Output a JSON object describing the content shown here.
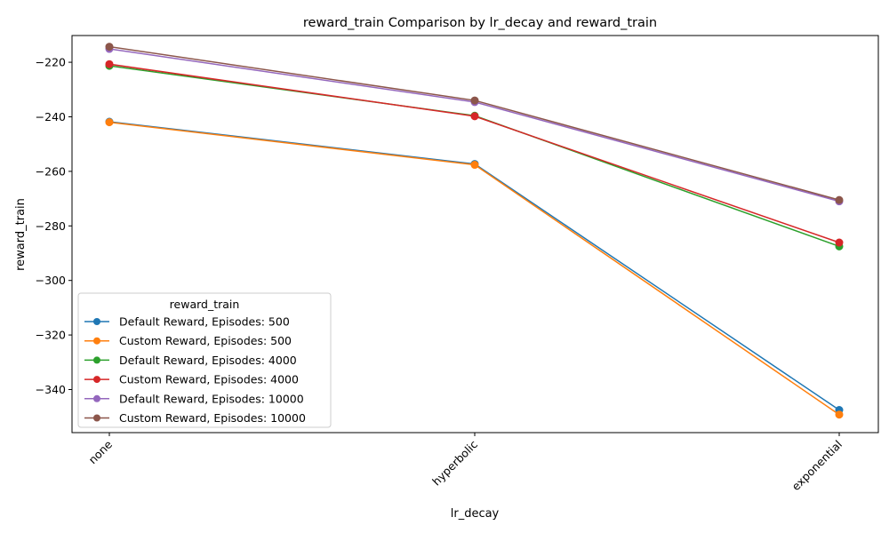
{
  "chart_data": {
    "type": "line",
    "title": "reward_train Comparison by lr_decay and reward_train",
    "xlabel": "lr_decay",
    "ylabel": "reward_train",
    "categories": [
      "none",
      "hyperbolic",
      "exponential"
    ],
    "ylim": [
      -355.8,
      -210.2
    ],
    "yticks": [
      -340,
      -320,
      -300,
      -280,
      -260,
      -240,
      -220
    ],
    "ytick_labels": [
      "−340",
      "−320",
      "−300",
      "−280",
      "−260",
      "−240",
      "−220"
    ],
    "grid": false,
    "legend": {
      "title": "reward_train",
      "placement": "lower-left"
    },
    "series": [
      {
        "name": "Default Reward, Episodes: 500",
        "color": "#1f77b4",
        "values": [
          -241.8,
          -257.3,
          -347.5
        ]
      },
      {
        "name": "Custom Reward, Episodes: 500",
        "color": "#ff7f0e",
        "values": [
          -242.0,
          -257.6,
          -349.2
        ]
      },
      {
        "name": "Default Reward, Episodes: 4000",
        "color": "#2ca02c",
        "values": [
          -221.3,
          -239.6,
          -287.5
        ]
      },
      {
        "name": "Custom Reward, Episodes: 4000",
        "color": "#d62728",
        "values": [
          -220.7,
          -239.8,
          -286.1
        ]
      },
      {
        "name": "Default Reward, Episodes: 10000",
        "color": "#9467bd",
        "values": [
          -215.1,
          -234.6,
          -271.0
        ]
      },
      {
        "name": "Custom Reward, Episodes: 10000",
        "color": "#8c564b",
        "values": [
          -214.3,
          -234.0,
          -270.5
        ]
      }
    ]
  }
}
